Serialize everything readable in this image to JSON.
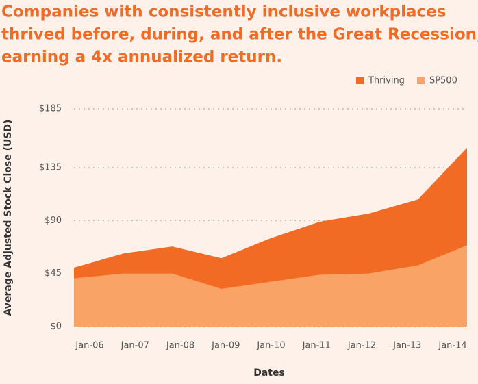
{
  "chart_data": {
    "type": "area",
    "title_lines": [
      "Companies with consistently inclusive workplaces",
      "thrived before, during, and after the Great Recession,",
      "earning a 4x annualized return."
    ],
    "x_label": "Dates",
    "y_label": "Average Adjusted Stock Close (USD)",
    "categories": [
      "Jan-06",
      "Jan-07",
      "Jan-08",
      "Jan-09",
      "Jan-10",
      "Jan-11",
      "Jan-12",
      "Jan-13",
      "Jan-14"
    ],
    "series": [
      {
        "name": "Thriving",
        "color": "#f26b25",
        "values": [
          50,
          62,
          68,
          58,
          75,
          89,
          96,
          108,
          152
        ]
      },
      {
        "name": "SP500",
        "color": "#f9a366",
        "values": [
          41,
          45,
          45,
          32,
          38,
          44,
          45,
          52,
          69
        ]
      }
    ],
    "ylim": [
      0,
      185
    ],
    "yticks": [
      {
        "value": 0,
        "label": "$0"
      },
      {
        "value": 45,
        "label": "$45"
      },
      {
        "value": 90,
        "label": "$90"
      },
      {
        "value": 135,
        "label": "$135"
      },
      {
        "value": 185,
        "label": "$185"
      }
    ],
    "grid": true,
    "legend": "top-right"
  }
}
